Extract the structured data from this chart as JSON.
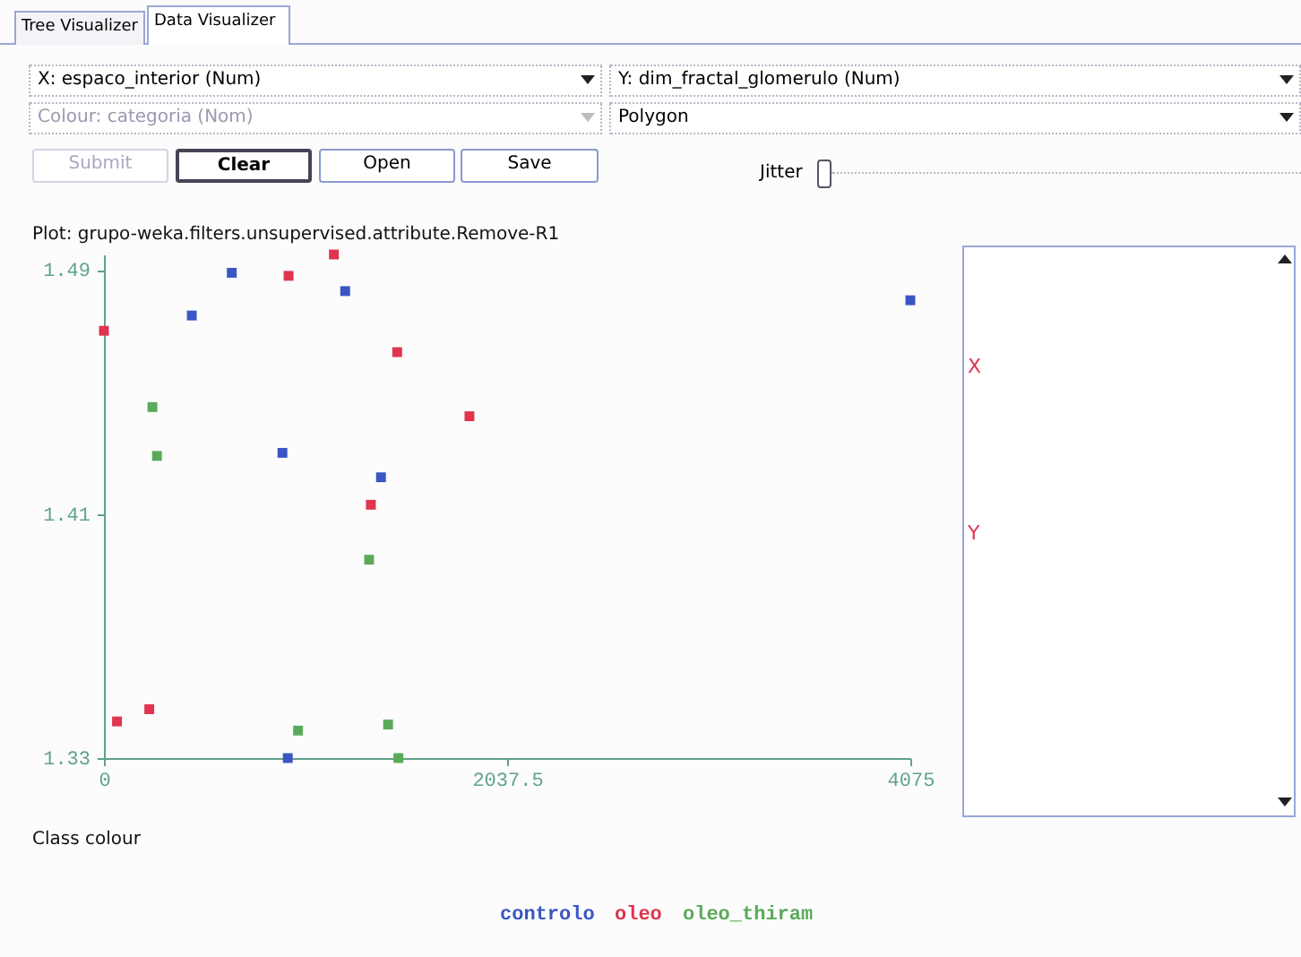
{
  "chart_data": {
    "type": "scatter",
    "title": "Plot: grupo-weka.filters.unsupervised.attribute.Remove-R1",
    "legend_title": "Class colour",
    "xlim": [
      0,
      4075
    ],
    "ylim": [
      1.33,
      1.495
    ],
    "xticks": [
      {
        "value": 0,
        "label": "0"
      },
      {
        "value": 2037.5,
        "label": "2037.5"
      },
      {
        "value": 4075,
        "label": "4075"
      }
    ],
    "yticks": [
      1.33,
      1.41,
      1.49
    ],
    "grid": false,
    "marker": "square",
    "legend": "bottom",
    "annotations": [
      "Tree Visualizer",
      "Data Visualizer",
      "X: espaco_interior (Num)",
      "Y: dim_fractal_glomerulo (Num)",
      "Colour: categoria (Nom)",
      "Polygon",
      "Submit",
      "Clear",
      "Open",
      "Save",
      "Jitter",
      "X",
      "Y"
    ],
    "series": [
      {
        "name": "controlo",
        "color": "#3a56c4",
        "x": [
          646,
          1219,
          444,
          902,
          1400,
          929,
          4075
        ],
        "values": [
          1.489,
          1.483,
          1.475,
          1.43,
          1.422,
          1.33,
          1.48
        ]
      },
      {
        "name": "oleo",
        "color": "#e0344f",
        "x": [
          0,
          1162,
          933,
          1482,
          1847,
          1349,
          66,
          229
        ],
        "values": [
          1.47,
          1.495,
          1.488,
          1.463,
          1.442,
          1.413,
          1.342,
          1.346
        ]
      },
      {
        "name": "oleo_thiram",
        "color": "#5aaa5a",
        "x": [
          245,
          268,
          1340,
          981,
          1436,
          1488
        ],
        "values": [
          1.445,
          1.429,
          1.395,
          1.339,
          1.341,
          1.33
        ]
      }
    ]
  }
}
